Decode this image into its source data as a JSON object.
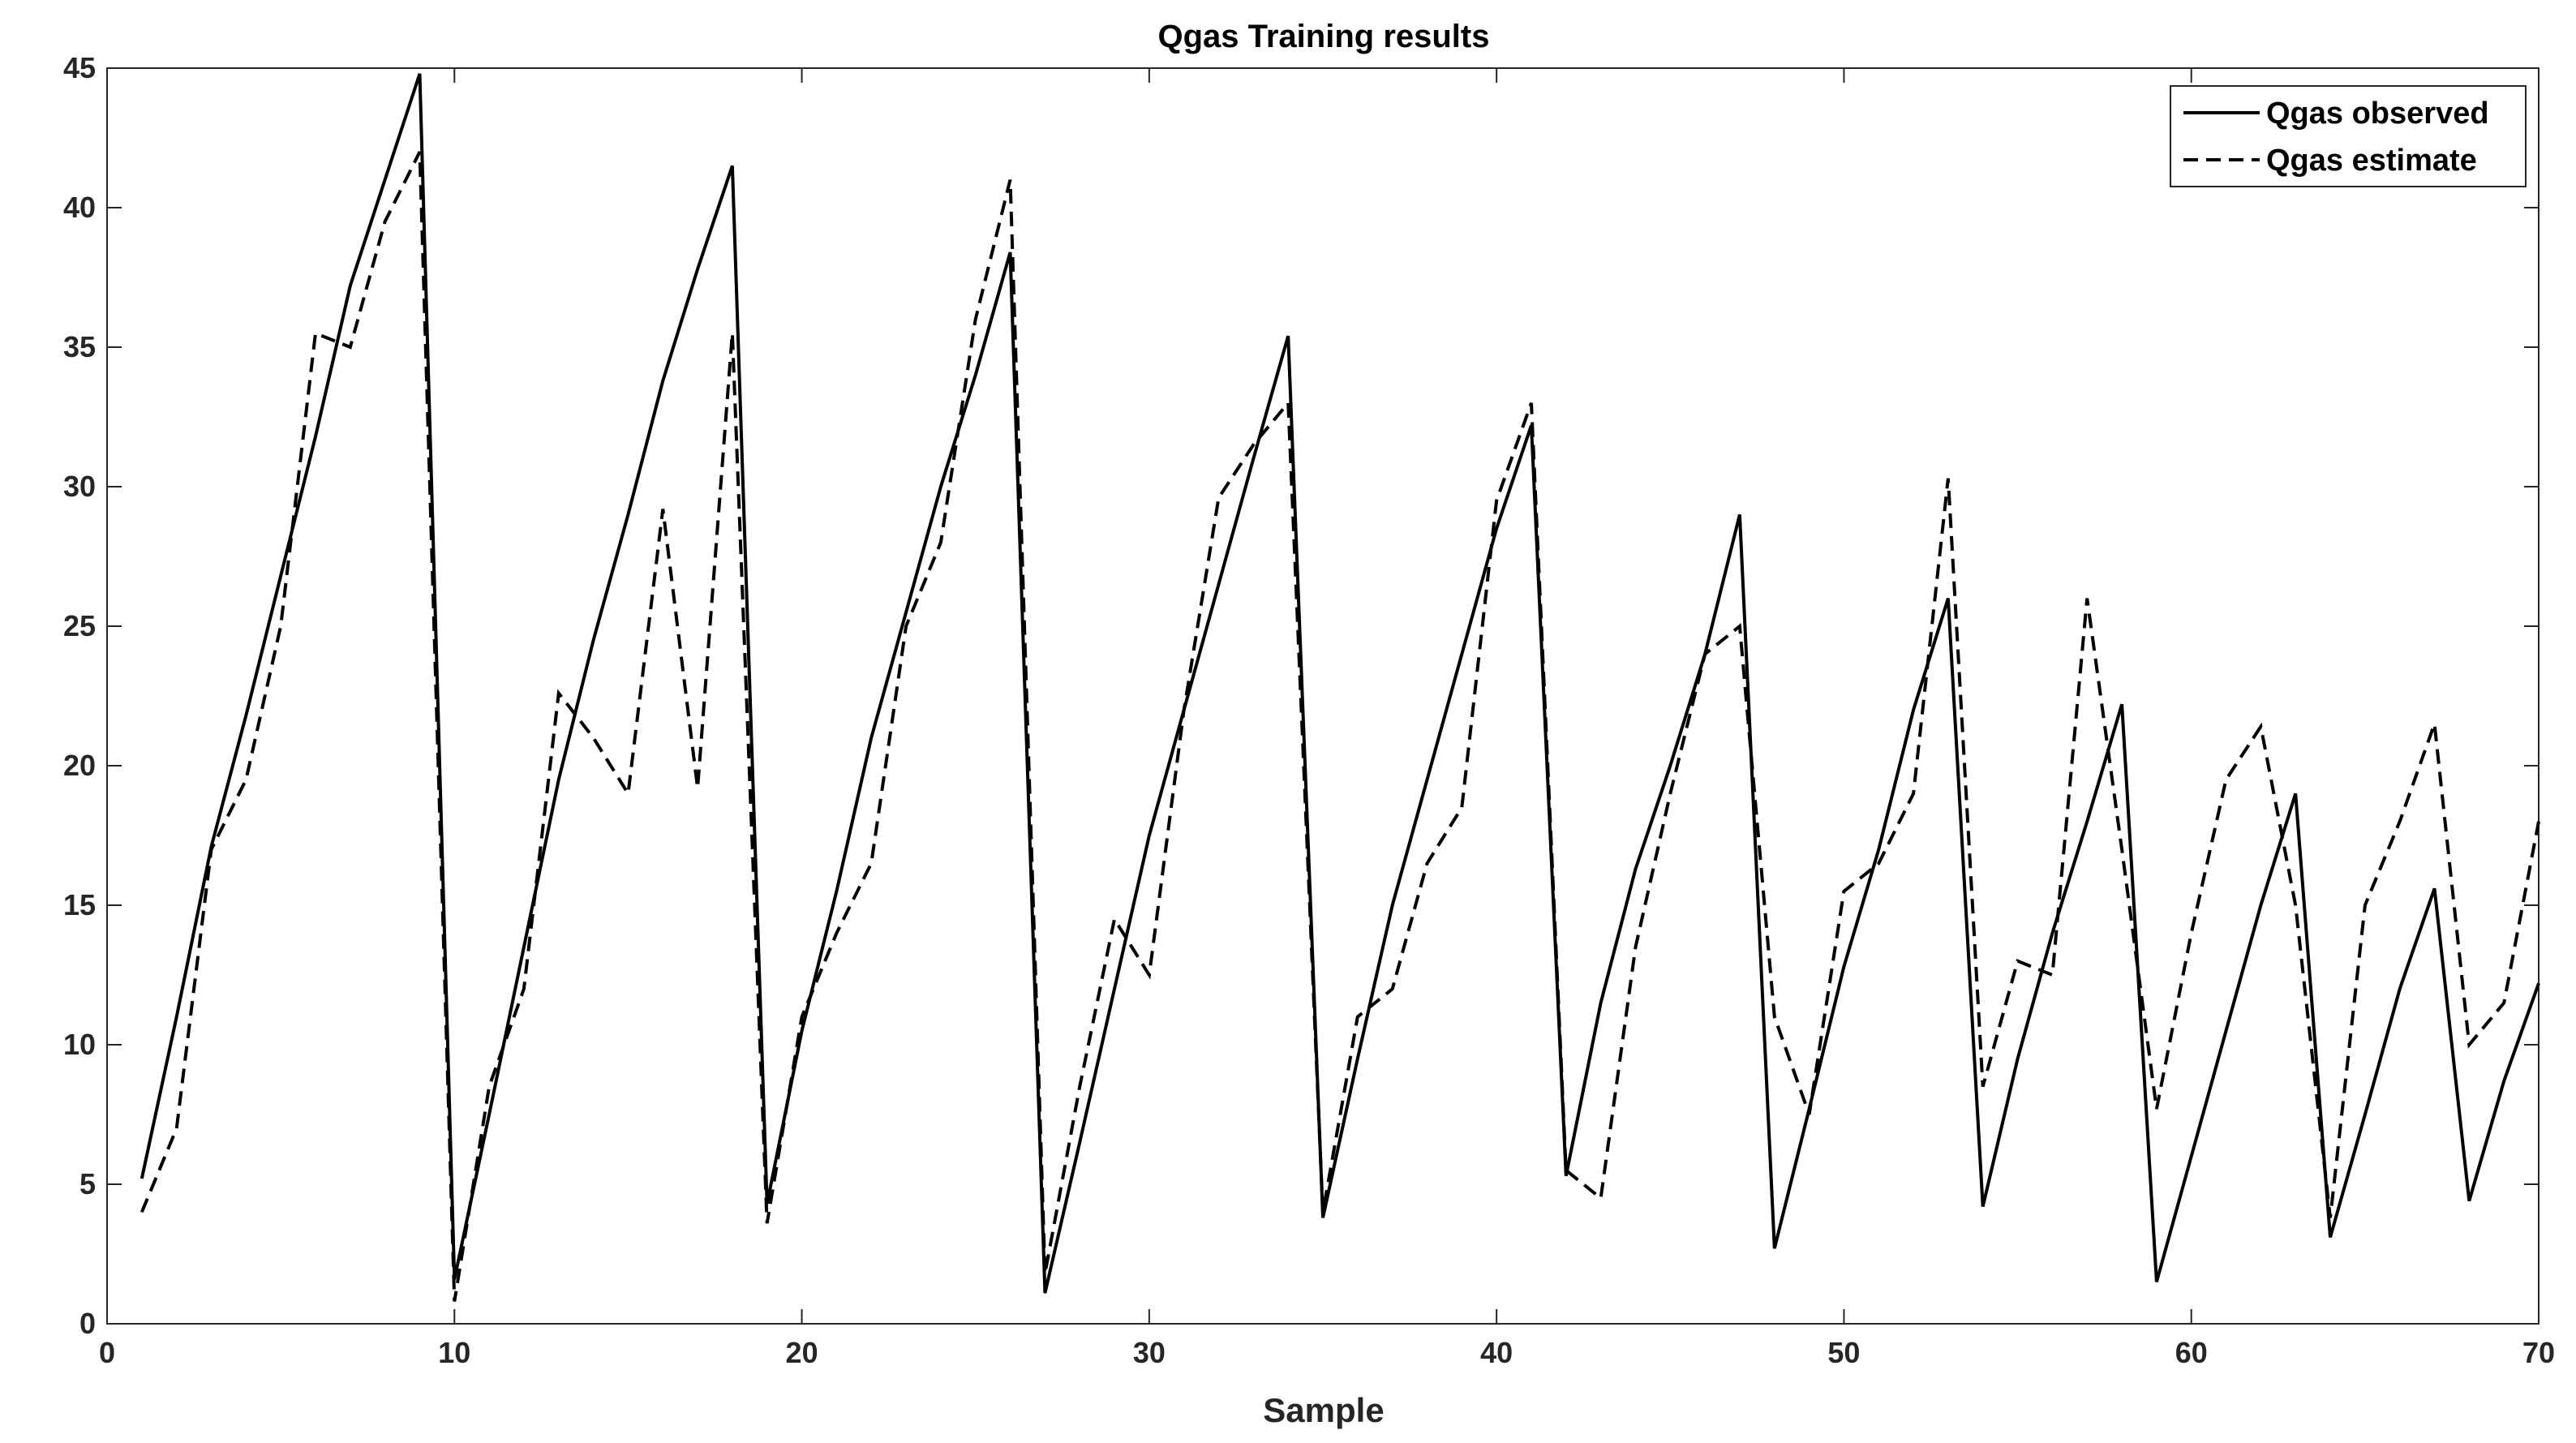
{
  "chart_data": {
    "type": "line",
    "title": "Qgas Training results",
    "xlabel": "Sample",
    "ylabel": "",
    "xlim": [
      0,
      70
    ],
    "ylim": [
      0,
      45
    ],
    "xticks": [
      0,
      10,
      20,
      30,
      40,
      50,
      60,
      70
    ],
    "yticks": [
      0,
      5,
      10,
      15,
      20,
      25,
      30,
      35,
      40,
      45
    ],
    "grid": false,
    "legend_position": "top-right",
    "x": [
      1,
      2,
      3,
      4,
      5,
      6,
      7,
      8,
      9,
      10,
      11,
      12,
      13,
      14,
      15,
      16,
      17,
      18,
      19,
      20,
      21,
      22,
      23,
      24,
      25,
      26,
      27,
      28,
      29,
      30,
      31,
      32,
      33,
      34,
      35,
      36,
      37,
      38,
      39,
      40,
      41,
      42,
      43,
      44,
      45,
      46,
      47,
      48,
      49,
      50,
      51,
      52,
      53,
      54,
      55,
      56,
      57,
      58,
      59,
      60,
      61,
      62,
      63,
      64,
      65,
      66,
      67,
      68,
      69,
      70
    ],
    "series": [
      {
        "name": "Qgas observed",
        "style": "solid",
        "color": "#000000",
        "values": [
          5.2,
          11.0,
          17.1,
          21.8,
          26.8,
          31.8,
          37.2,
          41.0,
          44.8,
          1.6,
          7.5,
          13.5,
          19.5,
          24.5,
          29.0,
          33.8,
          37.8,
          41.5,
          4.3,
          10.5,
          15.5,
          21.0,
          25.5,
          30.0,
          34.0,
          38.4,
          1.1,
          6.5,
          12.0,
          17.5,
          22.0,
          26.5,
          31.0,
          35.4,
          3.8,
          9.5,
          15.0,
          19.5,
          24.0,
          28.5,
          32.2,
          5.3,
          11.5,
          16.3,
          20.0,
          24.0,
          29.0,
          2.7,
          7.7,
          12.8,
          17.0,
          22.0,
          26.0,
          4.2,
          9.5,
          14.0,
          18.0,
          22.2,
          1.5,
          6.0,
          10.5,
          15.0,
          19.0,
          3.1,
          7.5,
          12.0,
          15.6,
          4.4,
          8.7,
          12.2
        ]
      },
      {
        "name": "Qgas estimate",
        "style": "dashed",
        "color": "#000000",
        "values": [
          4.0,
          7.0,
          17.0,
          19.5,
          25.0,
          35.5,
          35.0,
          39.5,
          42.0,
          0.8,
          8.5,
          12.0,
          22.6,
          21.0,
          19.0,
          29.2,
          19.2,
          35.5,
          3.6,
          11.0,
          14.0,
          16.5,
          25.0,
          28.0,
          36.0,
          41.0,
          1.8,
          8.5,
          14.5,
          12.5,
          22.0,
          29.6,
          31.5,
          33.0,
          4.0,
          11.0,
          12.0,
          16.5,
          18.5,
          29.5,
          33.0,
          5.5,
          4.5,
          13.5,
          19.0,
          24.0,
          25.0,
          11.0,
          7.5,
          15.5,
          16.5,
          19.0,
          30.3,
          8.5,
          13.0,
          12.5,
          26.0,
          17.0,
          7.7,
          14.0,
          19.5,
          21.4,
          15.0,
          3.8,
          15.0,
          18.0,
          21.5,
          10.0,
          11.5,
          18.0
        ]
      }
    ]
  }
}
